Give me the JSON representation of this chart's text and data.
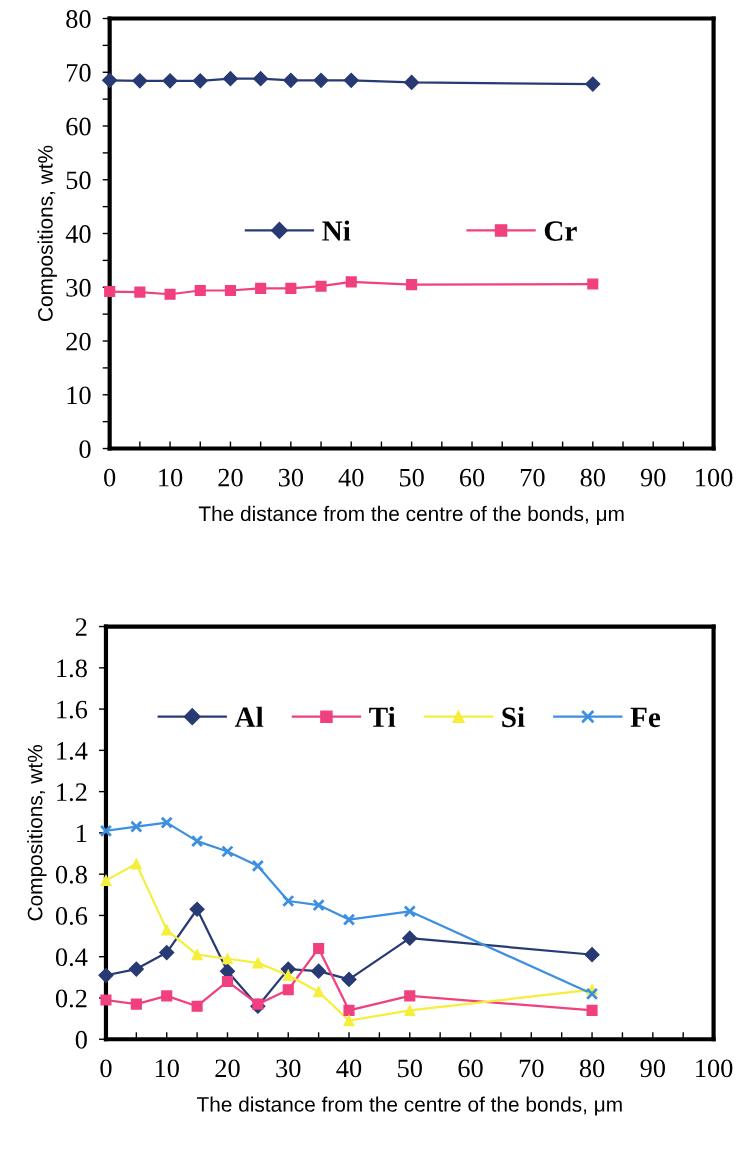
{
  "chart_data": [
    {
      "type": "line",
      "xlabel": "The distance from the centre of the bonds, μm",
      "ylabel": "Compositions, wt%",
      "x": [
        0,
        5,
        10,
        15,
        20,
        25,
        30,
        35,
        40,
        50,
        80
      ],
      "series": [
        {
          "name": "Ni",
          "color": "#283a73",
          "marker": "diamond",
          "values": [
            68.5,
            68.4,
            68.4,
            68.4,
            68.8,
            68.8,
            68.5,
            68.5,
            68.5,
            68.1,
            67.8
          ]
        },
        {
          "name": "Cr",
          "color": "#f0407f",
          "marker": "square",
          "values": [
            29.2,
            29.1,
            28.7,
            29.4,
            29.4,
            29.8,
            29.8,
            30.2,
            31.0,
            30.5,
            30.6
          ]
        }
      ],
      "xlim": [
        0,
        100
      ],
      "xticks": [
        0,
        {
          "value": 5,
          "label": null
        },
        10,
        {
          "value": 15,
          "label": null
        },
        20,
        {
          "value": 25,
          "label": null
        },
        30,
        {
          "value": 35,
          "label": null
        },
        40,
        {
          "value": 45,
          "label": null
        },
        50,
        {
          "value": 55,
          "label": null
        },
        60,
        {
          "value": 65,
          "label": null
        },
        70,
        {
          "value": 75,
          "label": null
        },
        80,
        {
          "value": 85,
          "label": null
        },
        90,
        {
          "value": 95,
          "label": null
        },
        100
      ],
      "ylim": [
        0,
        80
      ],
      "yticks": [
        0,
        {
          "value": 5,
          "label": null
        },
        10,
        {
          "value": 15,
          "label": null
        },
        20,
        {
          "value": 25,
          "label": null
        },
        30,
        {
          "value": 35,
          "label": null
        },
        40,
        {
          "value": 45,
          "label": null
        },
        50,
        {
          "value": 55,
          "label": null
        },
        60,
        {
          "value": 65,
          "label": null
        },
        70,
        {
          "value": 75,
          "label": null
        },
        80
      ],
      "grid": false,
      "legend": "center",
      "line_style": "solid"
    },
    {
      "type": "line",
      "xlabel": "The distance from the centre of the bonds, μm",
      "ylabel": "Compositions, wt%",
      "x": [
        0,
        5,
        10,
        15,
        20,
        25,
        30,
        35,
        40,
        50,
        80
      ],
      "series": [
        {
          "name": "Al",
          "color": "#283a73",
          "marker": "diamond",
          "values": [
            0.31,
            0.34,
            0.42,
            0.63,
            0.33,
            0.16,
            0.34,
            0.33,
            0.29,
            0.49,
            0.41
          ]
        },
        {
          "name": "Ti",
          "color": "#f0407f",
          "marker": "square",
          "values": [
            0.19,
            0.17,
            0.21,
            0.16,
            0.28,
            0.17,
            0.24,
            0.44,
            0.14,
            0.21,
            0.14
          ]
        },
        {
          "name": "Si",
          "color": "#f5ee3a",
          "marker": "triangle",
          "values": [
            0.77,
            0.85,
            0.53,
            0.41,
            0.39,
            0.37,
            0.31,
            0.23,
            0.09,
            0.14,
            0.24
          ]
        },
        {
          "name": "Fe",
          "color": "#3d8fe0",
          "marker": "cross",
          "values": [
            1.01,
            1.03,
            1.05,
            0.96,
            0.91,
            0.84,
            0.67,
            0.65,
            0.58,
            0.62,
            0.22
          ]
        }
      ],
      "xlim": [
        0,
        100
      ],
      "xticks": [
        0,
        {
          "value": 5,
          "label": null
        },
        10,
        {
          "value": 15,
          "label": null
        },
        20,
        {
          "value": 25,
          "label": null
        },
        30,
        {
          "value": 35,
          "label": null
        },
        40,
        {
          "value": 45,
          "label": null
        },
        50,
        {
          "value": 55,
          "label": null
        },
        60,
        {
          "value": 65,
          "label": null
        },
        70,
        {
          "value": 75,
          "label": null
        },
        80,
        {
          "value": 85,
          "label": null
        },
        90,
        {
          "value": 95,
          "label": null
        },
        100
      ],
      "ylim": [
        0,
        2
      ],
      "yticks": [
        0,
        0.2,
        0.4,
        0.6,
        0.8,
        1,
        1.2,
        1.4,
        1.6,
        1.8,
        2
      ],
      "grid": false,
      "legend": "top",
      "line_style": "solid"
    }
  ]
}
